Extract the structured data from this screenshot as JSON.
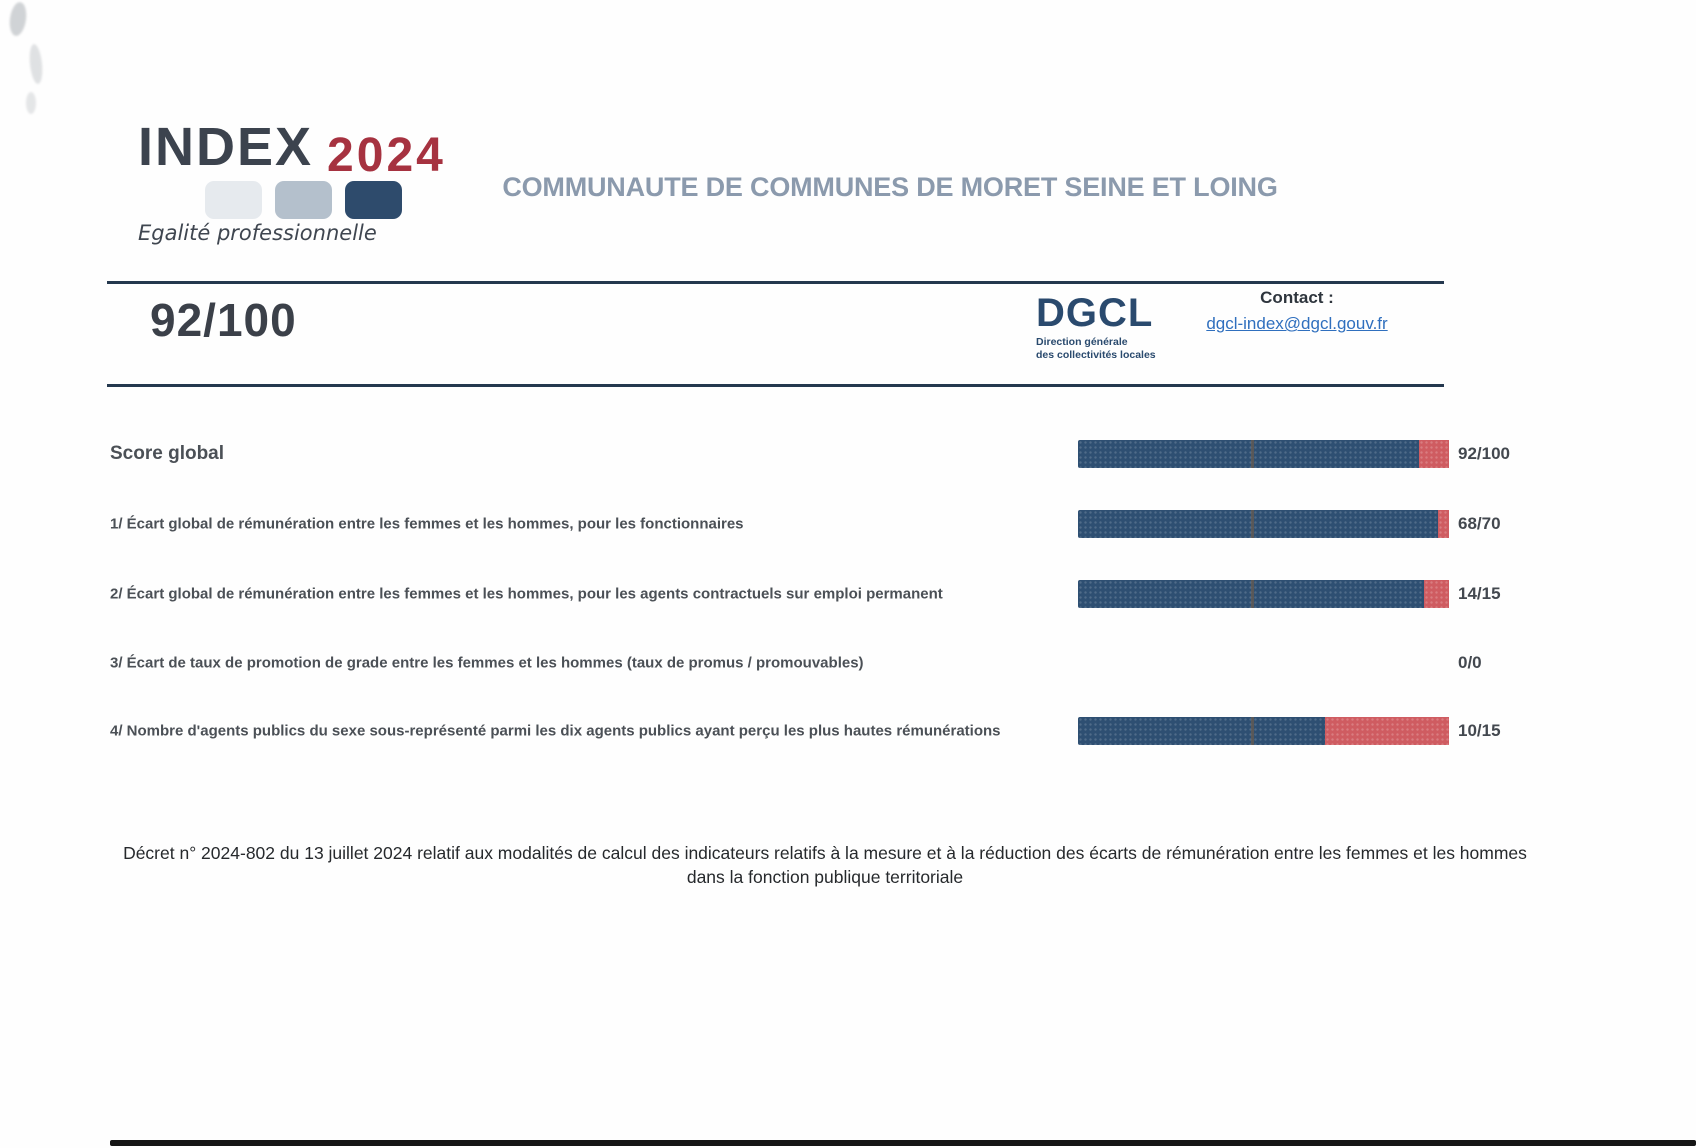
{
  "logo": {
    "index": "INDEX",
    "year": "2024",
    "tagline": "Egalité professionnelle",
    "squares": [
      "light-gray",
      "medium-gray-blue",
      "dark-navy"
    ]
  },
  "title": "COMMUNAUTE DE COMMUNES DE MORET SEINE ET LOING",
  "score_banner": {
    "global_score": "92/100",
    "dgcl": {
      "acronym": "DGCL",
      "subtitle_line1": "Direction générale",
      "subtitle_line2": "des collectivités locales"
    },
    "contact": {
      "label": "Contact :",
      "email": "dgcl-index@dgcl.gouv.fr"
    }
  },
  "chart_data": {
    "type": "bar",
    "orientation": "horizontal",
    "categories": [
      "Score global",
      "1/ Écart global de rémunération entre les femmes et les hommes, pour les fonctionnaires",
      "2/ Écart global de rémunération entre les femmes et les hommes, pour les agents contractuels sur emploi permanent",
      "3/ Écart de taux de promotion de grade entre les femmes et les hommes (taux de promus / promouvables)",
      "4/ Nombre d'agents publics du sexe sous-représenté parmi les dix agents publics ayant perçu les plus hautes rémunérations"
    ],
    "values": [
      92,
      68,
      14,
      0,
      10
    ],
    "maxima": [
      100,
      70,
      15,
      0,
      15
    ],
    "labels": [
      "92/100",
      "68/70",
      "14/15",
      "0/0",
      "10/15"
    ]
  },
  "indicators": [
    {
      "label": "Score global",
      "score": "92/100",
      "bar": true,
      "value": 92,
      "max": 100,
      "emphasis": true
    },
    {
      "label": "1/ Écart global de rémunération entre les femmes et les hommes, pour les fonctionnaires",
      "score": "68/70",
      "bar": true,
      "value": 68,
      "max": 70,
      "emphasis": false
    },
    {
      "label": "2/ Écart global de rémunération entre les femmes et les hommes, pour les agents contractuels sur emploi permanent",
      "score": "14/15",
      "bar": true,
      "value": 14,
      "max": 15,
      "emphasis": false
    },
    {
      "label": "3/ Écart de taux de promotion de grade entre les femmes et les hommes (taux de promus / promouvables)",
      "score": "0/0",
      "bar": false,
      "value": 0,
      "max": 0,
      "emphasis": false
    },
    {
      "label": "4/ Nombre d'agents publics du sexe sous-représenté parmi les dix agents publics ayant perçu les plus hautes rémunérations",
      "score": "10/15",
      "bar": true,
      "value": 10,
      "max": 15,
      "emphasis": false
    }
  ],
  "footnote": "Décret n° 2024-802 du 13 juillet 2024 relatif aux modalités de calcul des indicateurs relatifs à la mesure et à la réduction des écarts de rémunération entre les femmes et les hommes dans la fonction publique territoriale",
  "colors": {
    "bar_blue": "#2e4f72",
    "bar_red": "#cf5c61",
    "title_gray_blue": "#8b9aad",
    "accent_red": "#a63240",
    "navy": "#2a4a6e",
    "link_blue": "#2f6fbe",
    "rule": "#24384e",
    "text_dark": "#4b5056"
  }
}
